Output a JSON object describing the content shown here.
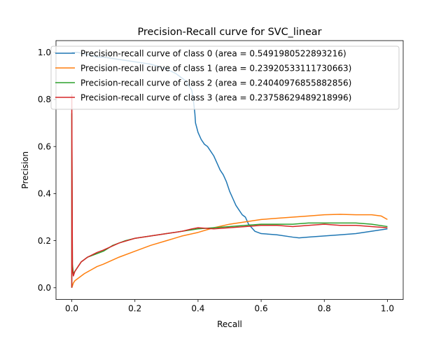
{
  "chart_data": {
    "type": "line",
    "title": "Precision-Recall curve for SVC_linear",
    "xlabel": "Recall",
    "ylabel": "Precision",
    "xlim": [
      -0.05,
      1.05
    ],
    "ylim": [
      -0.05,
      1.05
    ],
    "xticks": [
      0.0,
      0.2,
      0.4,
      0.6,
      0.8,
      1.0
    ],
    "xtick_labels": [
      "0.0",
      "0.2",
      "0.4",
      "0.6",
      "0.8",
      "1.0"
    ],
    "yticks": [
      0.0,
      0.2,
      0.4,
      0.6,
      0.8,
      1.0
    ],
    "ytick_labels": [
      "0.0",
      "0.2",
      "0.4",
      "0.6",
      "0.8",
      "1.0"
    ],
    "grid": false,
    "legend_position": "top-right",
    "series": [
      {
        "name": "Precision-recall curve of class 0 (area = 0.5491980522893216)",
        "color": "#1f77b4",
        "points": [
          [
            0.0,
            1.0
          ],
          [
            0.02,
            1.0
          ],
          [
            0.05,
            0.99
          ],
          [
            0.08,
            0.98
          ],
          [
            0.1,
            0.98
          ],
          [
            0.15,
            0.97
          ],
          [
            0.2,
            0.96
          ],
          [
            0.25,
            0.95
          ],
          [
            0.3,
            0.93
          ],
          [
            0.33,
            0.91
          ],
          [
            0.36,
            0.88
          ],
          [
            0.38,
            0.84
          ],
          [
            0.385,
            0.8
          ],
          [
            0.39,
            0.74
          ],
          [
            0.392,
            0.7
          ],
          [
            0.4,
            0.66
          ],
          [
            0.41,
            0.63
          ],
          [
            0.42,
            0.61
          ],
          [
            0.43,
            0.6
          ],
          [
            0.44,
            0.58
          ],
          [
            0.45,
            0.56
          ],
          [
            0.46,
            0.53
          ],
          [
            0.47,
            0.5
          ],
          [
            0.48,
            0.48
          ],
          [
            0.49,
            0.45
          ],
          [
            0.5,
            0.41
          ],
          [
            0.51,
            0.38
          ],
          [
            0.52,
            0.35
          ],
          [
            0.53,
            0.33
          ],
          [
            0.54,
            0.31
          ],
          [
            0.55,
            0.3
          ],
          [
            0.56,
            0.27
          ],
          [
            0.58,
            0.24
          ],
          [
            0.6,
            0.23
          ],
          [
            0.65,
            0.225
          ],
          [
            0.7,
            0.215
          ],
          [
            0.72,
            0.212
          ],
          [
            0.75,
            0.215
          ],
          [
            0.8,
            0.22
          ],
          [
            0.85,
            0.225
          ],
          [
            0.9,
            0.23
          ],
          [
            0.95,
            0.24
          ],
          [
            1.0,
            0.25
          ]
        ]
      },
      {
        "name": "Precision-recall curve of class 1 (area = 0.23920533111730663)",
        "color": "#ff7f0e",
        "points": [
          [
            0.0,
            0.0
          ],
          [
            0.005,
            0.02
          ],
          [
            0.01,
            0.03
          ],
          [
            0.02,
            0.04
          ],
          [
            0.04,
            0.06
          ],
          [
            0.06,
            0.075
          ],
          [
            0.08,
            0.09
          ],
          [
            0.1,
            0.1
          ],
          [
            0.15,
            0.13
          ],
          [
            0.2,
            0.155
          ],
          [
            0.25,
            0.18
          ],
          [
            0.3,
            0.2
          ],
          [
            0.35,
            0.22
          ],
          [
            0.4,
            0.235
          ],
          [
            0.45,
            0.255
          ],
          [
            0.5,
            0.27
          ],
          [
            0.55,
            0.28
          ],
          [
            0.6,
            0.29
          ],
          [
            0.65,
            0.295
          ],
          [
            0.7,
            0.3
          ],
          [
            0.75,
            0.305
          ],
          [
            0.8,
            0.31
          ],
          [
            0.85,
            0.312
          ],
          [
            0.9,
            0.31
          ],
          [
            0.95,
            0.31
          ],
          [
            0.98,
            0.305
          ],
          [
            1.0,
            0.29
          ]
        ]
      },
      {
        "name": "Precision-recall curve of class 2 (area = 0.24040976855882856)",
        "color": "#2ca02c",
        "points": [
          [
            0.0,
            0.0
          ],
          [
            0.0,
            0.74
          ],
          [
            0.002,
            0.1
          ],
          [
            0.005,
            0.06
          ],
          [
            0.01,
            0.07
          ],
          [
            0.02,
            0.09
          ],
          [
            0.03,
            0.11
          ],
          [
            0.05,
            0.13
          ],
          [
            0.07,
            0.14
          ],
          [
            0.1,
            0.155
          ],
          [
            0.13,
            0.18
          ],
          [
            0.17,
            0.2
          ],
          [
            0.2,
            0.21
          ],
          [
            0.25,
            0.22
          ],
          [
            0.3,
            0.23
          ],
          [
            0.35,
            0.24
          ],
          [
            0.4,
            0.25
          ],
          [
            0.45,
            0.255
          ],
          [
            0.5,
            0.26
          ],
          [
            0.55,
            0.265
          ],
          [
            0.6,
            0.27
          ],
          [
            0.65,
            0.27
          ],
          [
            0.7,
            0.27
          ],
          [
            0.75,
            0.275
          ],
          [
            0.8,
            0.275
          ],
          [
            0.85,
            0.275
          ],
          [
            0.9,
            0.275
          ],
          [
            0.95,
            0.27
          ],
          [
            1.0,
            0.26
          ]
        ]
      },
      {
        "name": "Precision-recall curve of class 3 (area = 0.23758629489218996)",
        "color": "#d62728",
        "points": [
          [
            0.0,
            0.0
          ],
          [
            0.0,
            0.82
          ],
          [
            0.002,
            0.08
          ],
          [
            0.005,
            0.05
          ],
          [
            0.01,
            0.07
          ],
          [
            0.02,
            0.09
          ],
          [
            0.03,
            0.11
          ],
          [
            0.05,
            0.13
          ],
          [
            0.08,
            0.15
          ],
          [
            0.1,
            0.16
          ],
          [
            0.15,
            0.19
          ],
          [
            0.2,
            0.21
          ],
          [
            0.25,
            0.22
          ],
          [
            0.3,
            0.23
          ],
          [
            0.35,
            0.24
          ],
          [
            0.38,
            0.25
          ],
          [
            0.4,
            0.255
          ],
          [
            0.45,
            0.25
          ],
          [
            0.5,
            0.255
          ],
          [
            0.55,
            0.26
          ],
          [
            0.6,
            0.265
          ],
          [
            0.65,
            0.265
          ],
          [
            0.7,
            0.26
          ],
          [
            0.75,
            0.265
          ],
          [
            0.8,
            0.27
          ],
          [
            0.85,
            0.265
          ],
          [
            0.9,
            0.265
          ],
          [
            0.95,
            0.26
          ],
          [
            1.0,
            0.255
          ]
        ]
      }
    ]
  }
}
